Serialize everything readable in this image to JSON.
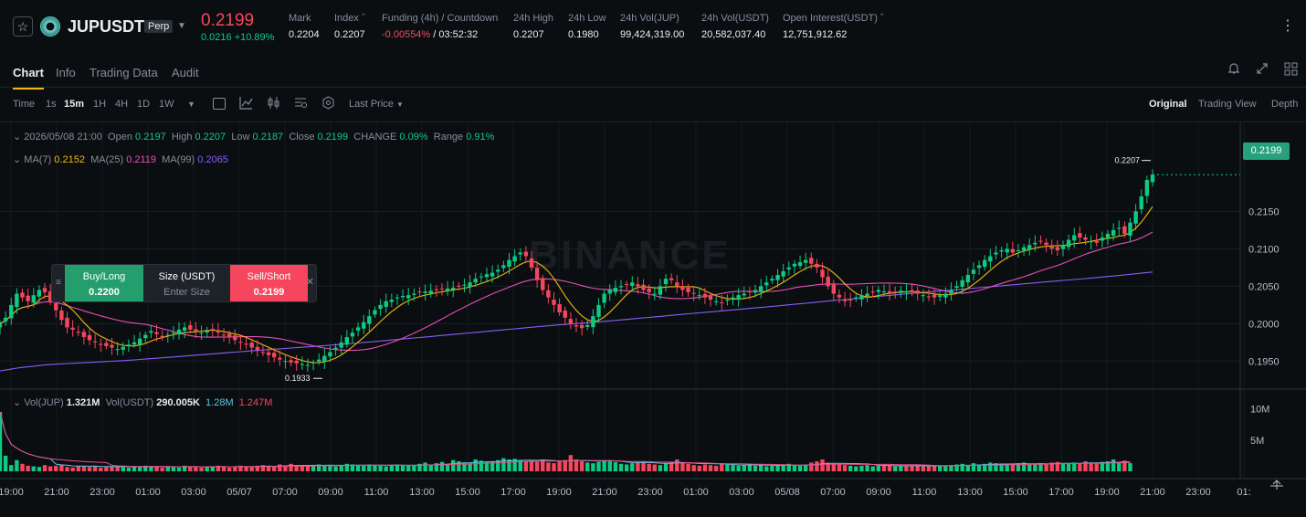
{
  "header": {
    "symbol": "JUPUSDT",
    "contract_badge": "Perp",
    "last_price": "0.2199",
    "change": "0.0216 +10.89%",
    "stats": [
      {
        "label": "Mark",
        "value": "0.2204"
      },
      {
        "label": "Index",
        "value": "0.2207"
      },
      {
        "label": "Funding (4h) / Countdown",
        "value_a": "-0.00554%",
        "value_b": "/ 03:52:32"
      },
      {
        "label": "24h High",
        "value": "0.2207"
      },
      {
        "label": "24h Low",
        "value": "0.1980"
      },
      {
        "label": "24h Vol(JUP)",
        "value": "99,424,319.00"
      },
      {
        "label": "24h Vol(USDT)",
        "value": "20,582,037.40"
      },
      {
        "label": "Open Interest(USDT)",
        "value": "12,751,912.62"
      }
    ]
  },
  "tabs": [
    "Chart",
    "Info",
    "Trading Data",
    "Audit"
  ],
  "toolbar": {
    "time_label": "Time",
    "intervals": [
      "1s",
      "15m",
      "1H",
      "4H",
      "1D",
      "1W"
    ],
    "price_type": "Last Price",
    "views": [
      "Original",
      "Trading View",
      "Depth"
    ]
  },
  "ohlc": {
    "date": "2026/05/08 21:00",
    "open_label": "Open",
    "open": "0.2197",
    "high_label": "High",
    "high": "0.2207",
    "low_label": "Low",
    "low": "0.2187",
    "close_label": "Close",
    "close": "0.2199",
    "change_label": "CHANGE",
    "change": "0.09%",
    "range_label": "Range",
    "range": "0.91%"
  },
  "ma": {
    "ma7_label": "MA(7)",
    "ma7": "0.2152",
    "ma25_label": "MA(25)",
    "ma25": "0.2119",
    "ma99_label": "MA(99)",
    "ma99": "0.2065"
  },
  "volume": {
    "vol_label": "Vol(JUP)",
    "vol": "1.321M",
    "volusdt_label": "Vol(USDT)",
    "volusdt": "290.005K",
    "ma1": "1.28M",
    "ma2": "1.247M",
    "axis": [
      "10M",
      "5M"
    ]
  },
  "order_panel": {
    "buy_label": "Buy/Long",
    "buy_price": "0.2200",
    "size_label": "Size (USDT)",
    "size_placeholder": "Enter Size",
    "sell_label": "Sell/Short",
    "sell_price": "0.2199"
  },
  "current_price_tag": "0.2199",
  "high_marker": "0.2207",
  "low_marker": "0.1933",
  "watermark": "BINANCE",
  "price_axis": [
    "0.2150",
    "0.2100",
    "0.2050",
    "0.2000",
    "0.1950"
  ],
  "time_axis": [
    "19:00",
    "21:00",
    "23:00",
    "01:00",
    "03:00",
    "05/07",
    "07:00",
    "09:00",
    "11:00",
    "13:00",
    "15:00",
    "17:00",
    "19:00",
    "21:00",
    "23:00",
    "01:00",
    "03:00",
    "05/08",
    "07:00",
    "09:00",
    "11:00",
    "13:00",
    "15:00",
    "17:00",
    "19:00",
    "21:00",
    "23:00",
    "01:"
  ],
  "colors": {
    "up": "#0ecb81",
    "down": "#f6465d",
    "ma7": "#f0b90b",
    "ma25": "#e84eb6",
    "ma99": "#8b5cf6",
    "accent": "#f0b90b"
  },
  "chart_data": {
    "type": "candlestick",
    "interval": "15m",
    "ylim": [
      0.1915,
      0.222
    ],
    "volume_ylim": [
      0,
      12000000
    ],
    "start_label": "19:00",
    "candles_per_hour": 4,
    "closes": [
      0.2,
      0.2008,
      0.2025,
      0.204,
      0.2035,
      0.203,
      0.2038,
      0.2045,
      0.2042,
      0.203,
      0.2018,
      0.2005,
      0.1995,
      0.1992,
      0.1988,
      0.1982,
      0.1978,
      0.1975,
      0.1972,
      0.197,
      0.1968,
      0.1966,
      0.1969,
      0.1972,
      0.1975,
      0.198,
      0.1985,
      0.199,
      0.1986,
      0.1982,
      0.1985,
      0.1988,
      0.1992,
      0.1995,
      0.1992,
      0.199,
      0.1988,
      0.199,
      0.1992,
      0.1988,
      0.1985,
      0.1982,
      0.1978,
      0.1975,
      0.1972,
      0.1968,
      0.1965,
      0.1962,
      0.1958,
      0.1955,
      0.1952,
      0.195,
      0.1948,
      0.1947,
      0.1946,
      0.1945,
      0.1948,
      0.1952,
      0.1957,
      0.1962,
      0.1968,
      0.1975,
      0.1982,
      0.1988,
      0.1995,
      0.2002,
      0.201,
      0.2018,
      0.2025,
      0.203,
      0.2032,
      0.2035,
      0.2037,
      0.2038,
      0.204,
      0.2042,
      0.2043,
      0.2044,
      0.2045,
      0.2046,
      0.2047,
      0.2048,
      0.205,
      0.2052,
      0.2055,
      0.206,
      0.2063,
      0.2066,
      0.2068,
      0.2072,
      0.2078,
      0.2085,
      0.209,
      0.2095,
      0.209,
      0.2075,
      0.2058,
      0.2045,
      0.2035,
      0.2025,
      0.2015,
      0.2008,
      0.2,
      0.1996,
      0.1994,
      0.1998,
      0.201,
      0.2025,
      0.204,
      0.2045,
      0.2048,
      0.205,
      0.2052,
      0.2055,
      0.205,
      0.2045,
      0.2042,
      0.204,
      0.205,
      0.206,
      0.2058,
      0.205,
      0.2045,
      0.2042,
      0.204,
      0.2038,
      0.2035,
      0.2032,
      0.203,
      0.2028,
      0.2032,
      0.2035,
      0.2038,
      0.204,
      0.2042,
      0.2045,
      0.205,
      0.2055,
      0.206,
      0.2065,
      0.207,
      0.2075,
      0.208,
      0.2082,
      0.2085,
      0.208,
      0.2075,
      0.2062,
      0.205,
      0.204,
      0.2035,
      0.203,
      0.2032,
      0.2035,
      0.2038,
      0.204,
      0.2042,
      0.2045,
      0.2043,
      0.204,
      0.2042,
      0.2044,
      0.2043,
      0.2042,
      0.204,
      0.2038,
      0.2036,
      0.2035,
      0.2038,
      0.204,
      0.2045,
      0.205,
      0.2058,
      0.2065,
      0.2072,
      0.2078,
      0.2085,
      0.209,
      0.2095,
      0.2098,
      0.21,
      0.2095,
      0.2098,
      0.2102,
      0.2105,
      0.2108,
      0.211,
      0.2105,
      0.21,
      0.2098,
      0.2105,
      0.2112,
      0.2118,
      0.2115,
      0.2112,
      0.211,
      0.2108,
      0.2115,
      0.212,
      0.2125,
      0.2128,
      0.212,
      0.2135,
      0.215,
      0.217,
      0.2192,
      0.2199
    ],
    "volumes": [
      9.5,
      2.5,
      1.0,
      1.8,
      1.2,
      0.9,
      0.8,
      0.7,
      1.0,
      0.8,
      0.9,
      1.1,
      0.7,
      0.6,
      0.8,
      0.9,
      0.7,
      0.8,
      0.6,
      0.7,
      0.8,
      0.9,
      0.7,
      0.6,
      0.8,
      0.7,
      0.9,
      0.8,
      0.7,
      0.6,
      0.8,
      0.7,
      0.6,
      0.9,
      0.7,
      0.8,
      0.6,
      0.7,
      0.8,
      0.9,
      0.7,
      0.6,
      0.8,
      0.9,
      0.7,
      0.8,
      0.9,
      1.0,
      0.9,
      0.8,
      1.1,
      0.9,
      1.2,
      1.0,
      0.9,
      0.8,
      1.0,
      1.1,
      0.9,
      1.0,
      0.8,
      0.9,
      1.2,
      1.1,
      1.0,
      0.9,
      1.1,
      1.0,
      0.9,
      0.8,
      1.0,
      1.1,
      0.9,
      1.0,
      0.9,
      1.2,
      1.4,
      1.1,
      1.3,
      1.5,
      1.2,
      1.8,
      1.6,
      1.4,
      1.3,
      1.9,
      1.7,
      1.5,
      1.6,
      1.8,
      2.1,
      1.9,
      2.0,
      1.8,
      1.6,
      1.7,
      1.5,
      1.9,
      1.4,
      1.3,
      1.6,
      1.8,
      2.6,
      1.9,
      1.6,
      1.4,
      1.3,
      1.5,
      1.7,
      1.6,
      1.5,
      1.2,
      1.1,
      1.3,
      1.4,
      1.6,
      1.2,
      1.1,
      1.0,
      1.3,
      1.5,
      1.9,
      1.4,
      1.2,
      1.0,
      0.9,
      1.1,
      1.0,
      0.9,
      1.2,
      1.1,
      1.0,
      0.9,
      1.0,
      1.1,
      0.9,
      1.0,
      0.8,
      0.9,
      1.0,
      1.1,
      1.2,
      1.0,
      0.9,
      1.1,
      1.4,
      1.6,
      1.9,
      1.4,
      1.2,
      1.1,
      1.0,
      0.9,
      0.8,
      0.9,
      1.0,
      0.8,
      0.9,
      1.0,
      0.9,
      0.8,
      0.9,
      0.8,
      0.9,
      1.0,
      0.8,
      0.9,
      1.0,
      0.9,
      0.8,
      1.0,
      1.1,
      1.2,
      1.0,
      1.3,
      1.1,
      1.2,
      1.4,
      1.3,
      1.1,
      1.0,
      1.2,
      1.3,
      1.4,
      1.2,
      1.1,
      1.3,
      1.2,
      1.4,
      1.5,
      1.3,
      1.2,
      1.4,
      1.3,
      1.6,
      1.4,
      1.3,
      1.5,
      1.6,
      1.9,
      1.5,
      1.7,
      1.3
    ]
  }
}
